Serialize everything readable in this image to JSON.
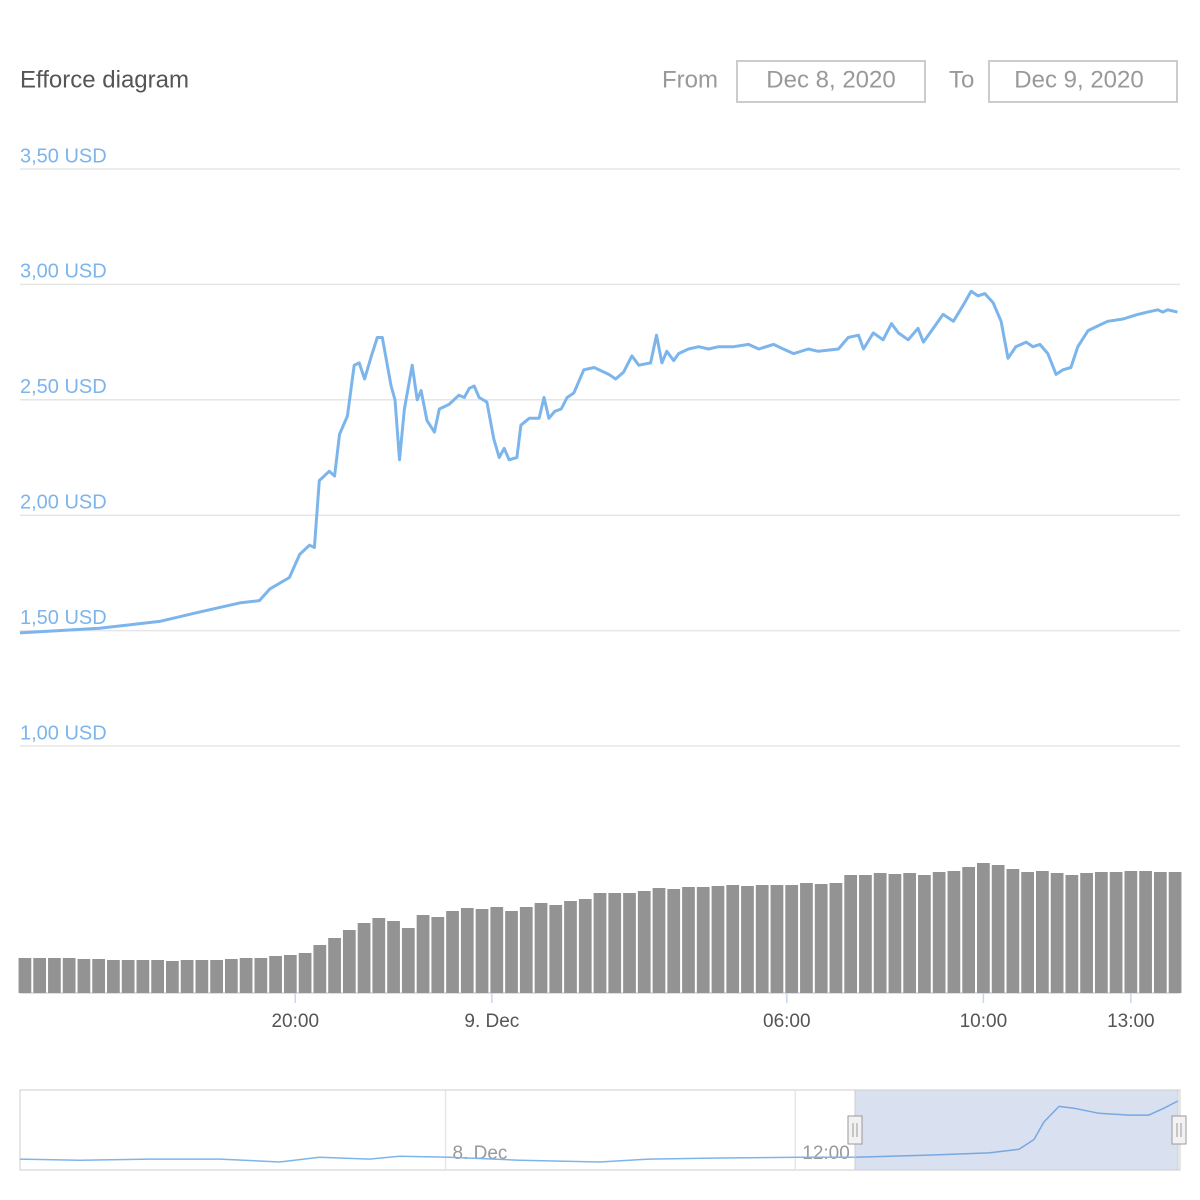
{
  "range_selector": {
    "from_label": "From",
    "from": "Dec 8, 2020",
    "to_label": "To",
    "to": "Dec 9, 2020"
  },
  "chart_data": {
    "type": "line",
    "title": "Efforce diagram",
    "xlim": [
      14.4,
      38
    ],
    "xticks": [
      {
        "value": 20,
        "label": "20:00"
      },
      {
        "value": 24,
        "label": "9. Dec"
      },
      {
        "value": 30,
        "label": "06:00"
      },
      {
        "value": 34,
        "label": "10:00"
      },
      {
        "value": 37,
        "label": "13:00"
      }
    ],
    "ylim": [
      1,
      3.5
    ],
    "yticks": [
      {
        "value": 1,
        "label": "1,00 USD"
      },
      {
        "value": 1.5,
        "label": "1,50 USD"
      },
      {
        "value": 2,
        "label": "2,00 USD"
      },
      {
        "value": 2.5,
        "label": "2,50 USD"
      },
      {
        "value": 3,
        "label": "3,00 USD"
      },
      {
        "value": 3.5,
        "label": "3,50 USD"
      }
    ],
    "y2lim": [
      0,
      200
    ],
    "grid": true,
    "series": [
      {
        "type": "line",
        "color": "#7cb5ec",
        "x": [
          14.4,
          16.02,
          17.24,
          18.05,
          18.87,
          19.27,
          19.48,
          19.88,
          20.09,
          20.29,
          20.39,
          20.49,
          20.69,
          20.8,
          20.9,
          21.06,
          21.2,
          21.3,
          21.41,
          21.55,
          21.67,
          21.77,
          21.95,
          22.03,
          22.12,
          22.22,
          22.38,
          22.48,
          22.56,
          22.68,
          22.83,
          22.93,
          23.13,
          23.33,
          23.44,
          23.54,
          23.64,
          23.74,
          23.9,
          24.04,
          24.15,
          24.25,
          24.35,
          24.51,
          24.59,
          24.76,
          24.96,
          25.06,
          25.16,
          25.28,
          25.41,
          25.53,
          25.67,
          25.87,
          26.08,
          26.38,
          26.52,
          26.68,
          26.85,
          26.99,
          27.23,
          27.35,
          27.46,
          27.56,
          27.7,
          27.8,
          28.0,
          28.21,
          28.41,
          28.61,
          28.92,
          29.22,
          29.43,
          29.73,
          29.93,
          30.14,
          30.44,
          30.64,
          31.05,
          31.25,
          31.46,
          31.56,
          31.76,
          31.96,
          32.13,
          32.27,
          32.47,
          32.67,
          32.78,
          32.98,
          33.18,
          33.39,
          33.59,
          33.75,
          33.89,
          34.03,
          34.2,
          34.36,
          34.5,
          34.66,
          34.87,
          35.01,
          35.15,
          35.31,
          35.48,
          35.62,
          35.78,
          35.92,
          36.13,
          36.33,
          36.53,
          36.84,
          37.14,
          37.34,
          37.55,
          37.65,
          37.75,
          37.95
        ],
        "values": [
          1.49,
          1.51,
          1.54,
          1.58,
          1.62,
          1.63,
          1.68,
          1.73,
          1.83,
          1.87,
          1.86,
          2.15,
          2.19,
          2.17,
          2.35,
          2.43,
          2.65,
          2.66,
          2.59,
          2.69,
          2.77,
          2.77,
          2.56,
          2.5,
          2.24,
          2.46,
          2.65,
          2.5,
          2.54,
          2.41,
          2.36,
          2.46,
          2.48,
          2.52,
          2.51,
          2.55,
          2.56,
          2.51,
          2.49,
          2.33,
          2.25,
          2.29,
          2.24,
          2.25,
          2.39,
          2.42,
          2.42,
          2.51,
          2.42,
          2.45,
          2.46,
          2.51,
          2.53,
          2.63,
          2.64,
          2.61,
          2.59,
          2.62,
          2.69,
          2.65,
          2.66,
          2.78,
          2.66,
          2.71,
          2.67,
          2.7,
          2.72,
          2.73,
          2.72,
          2.73,
          2.73,
          2.74,
          2.72,
          2.74,
          2.72,
          2.7,
          2.72,
          2.71,
          2.72,
          2.77,
          2.78,
          2.72,
          2.79,
          2.76,
          2.83,
          2.79,
          2.76,
          2.81,
          2.75,
          2.81,
          2.87,
          2.84,
          2.91,
          2.97,
          2.95,
          2.96,
          2.92,
          2.84,
          2.68,
          2.73,
          2.75,
          2.73,
          2.74,
          2.7,
          2.61,
          2.63,
          2.64,
          2.73,
          2.8,
          2.82,
          2.84,
          2.85,
          2.87,
          2.88,
          2.89,
          2.88,
          2.89,
          2.88
        ]
      },
      {
        "type": "column",
        "axis": "y2",
        "color": "#939393",
        "x": [
          14.5,
          14.8,
          15.1,
          15.4,
          15.7,
          16.0,
          16.3,
          16.6,
          16.9,
          17.2,
          17.5,
          17.8,
          18.1,
          18.4,
          18.7,
          19.0,
          19.3,
          19.6,
          19.9,
          20.2,
          20.5,
          20.8,
          21.1,
          21.4,
          21.7,
          22.0,
          22.3,
          22.6,
          22.9,
          23.2,
          23.5,
          23.8,
          24.1,
          24.4,
          24.7,
          25.0,
          25.3,
          25.6,
          25.9,
          26.2,
          26.5,
          26.8,
          27.1,
          27.4,
          27.7,
          28.0,
          28.3,
          28.6,
          28.9,
          29.2,
          29.5,
          29.8,
          30.1,
          30.4,
          30.7,
          31.0,
          31.3,
          31.6,
          31.9,
          32.2,
          32.5,
          32.8,
          33.1,
          33.4,
          33.7,
          34.0,
          34.3,
          34.6,
          34.9,
          35.2,
          35.5,
          35.8,
          36.1,
          36.4,
          36.7,
          37.0,
          37.3,
          37.6,
          37.9
        ],
        "values": [
          35,
          35,
          35,
          35,
          34,
          34,
          33,
          33,
          33,
          33,
          32,
          33,
          33,
          33,
          34,
          35,
          35,
          37,
          38,
          40,
          48,
          55,
          63,
          70,
          75,
          72,
          65,
          78,
          76,
          82,
          85,
          84,
          86,
          82,
          86,
          90,
          88,
          92,
          94,
          100,
          100,
          100,
          102,
          105,
          104,
          106,
          106,
          107,
          108,
          107,
          108,
          108,
          108,
          110,
          109,
          110,
          118,
          118,
          120,
          119,
          120,
          118,
          121,
          122,
          126,
          130,
          128,
          124,
          121,
          122,
          120,
          118,
          120,
          121,
          121,
          122,
          122,
          121,
          121
        ]
      }
    ],
    "navigator": {
      "type": "line",
      "color": "#7cb5ec",
      "xlim": [
        -14.6,
        25.2
      ],
      "ylim": [
        1.2,
        3.4
      ],
      "xticks": [
        {
          "value": 0,
          "label": "8. Dec"
        },
        {
          "value": 12,
          "label": "12:00"
        }
      ],
      "x": [
        -14.6,
        -12.55,
        -10.15,
        -7.75,
        -5.69,
        -4.32,
        -2.61,
        -1.58,
        0.14,
        2.54,
        5.28,
        6.99,
        9.39,
        12.14,
        14.02,
        16.59,
        18.65,
        19.68,
        20.19,
        20.53,
        21.05,
        21.56,
        22.42,
        23.45,
        24.13,
        24.65,
        25.16
      ],
      "values": [
        1.5,
        1.47,
        1.5,
        1.5,
        1.42,
        1.55,
        1.5,
        1.58,
        1.55,
        1.47,
        1.42,
        1.5,
        1.53,
        1.55,
        1.55,
        1.61,
        1.67,
        1.77,
        2.04,
        2.52,
        2.95,
        2.9,
        2.76,
        2.71,
        2.71,
        2.9,
        3.11
      ]
    }
  }
}
